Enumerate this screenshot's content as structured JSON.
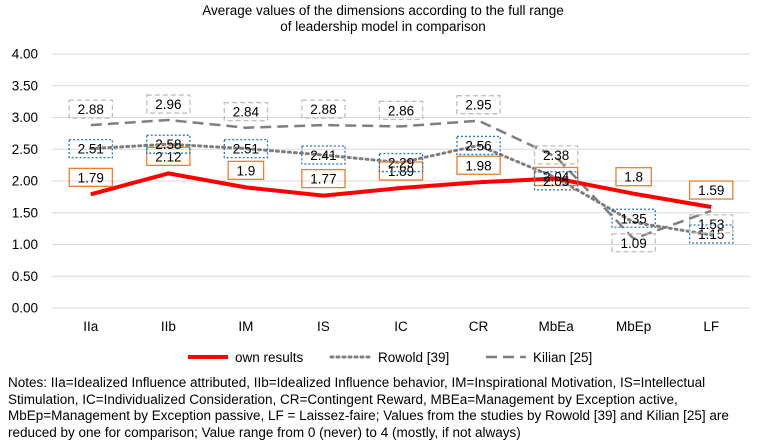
{
  "chart_data": {
    "type": "line",
    "title_lines": [
      "Average values of the dimensions according to the full range",
      "of leadership model in comparison"
    ],
    "categories": [
      "IIa",
      "IIb",
      "IM",
      "IS",
      "IC",
      "CR",
      "MbEa",
      "MbEp",
      "LF"
    ],
    "ylim": [
      0,
      4
    ],
    "yticks": [
      "0.00",
      "0.50",
      "1.00",
      "1.50",
      "2.00",
      "2.50",
      "3.00",
      "3.50",
      "4.00"
    ],
    "grid": true,
    "legend_position": "bottom",
    "series": [
      {
        "name": "own results",
        "values": [
          1.79,
          2.12,
          1.9,
          1.77,
          1.89,
          1.98,
          2.04,
          1.8,
          1.59
        ],
        "labels": [
          "1.79",
          "2.12",
          "1.9",
          "1.77",
          "1.89",
          "1.98",
          "2.04",
          "1.8",
          "1.59"
        ],
        "color": "#ff0000",
        "style": "solid",
        "label_box": "#ed7d31"
      },
      {
        "name": "Rowold [39]",
        "values": [
          2.51,
          2.58,
          2.51,
          2.41,
          2.29,
          2.56,
          2.05,
          1.35,
          1.15
        ],
        "labels": [
          "2.51",
          "2.58",
          "2.51",
          "2.41",
          "2.29",
          "2.56",
          "2.05",
          "1.35",
          "1.15"
        ],
        "color": "#7f7f7f",
        "style": "dotted",
        "label_box": "#2e75b6"
      },
      {
        "name": "Kilian [25]",
        "values": [
          2.88,
          2.96,
          2.84,
          2.88,
          2.86,
          2.95,
          2.38,
          1.09,
          1.53
        ],
        "labels": [
          "2.88",
          "2.96",
          "2.84",
          "2.88",
          "2.86",
          "2.95",
          "2.38",
          "1.09",
          "1.53"
        ],
        "color": "#7f7f7f",
        "style": "dashed",
        "label_box": "#bfbfbf"
      }
    ]
  },
  "notes": "Notes: IIa=Idealized Influence attributed, IIb=Idealized Influence behavior, IM=Inspirational Motivation, IS=Intellectual Stimulation, IC=Individualized Consideration, CR=Contingent Reward, MBEa=Management by Exception active, MbEp=Management by Exception passive, LF = Laissez-faire; Values from the studies by Rowold [39] and Kilian [25] are reduced by one for comparison; Value range from 0 (never) to 4 (mostly, if not always)"
}
